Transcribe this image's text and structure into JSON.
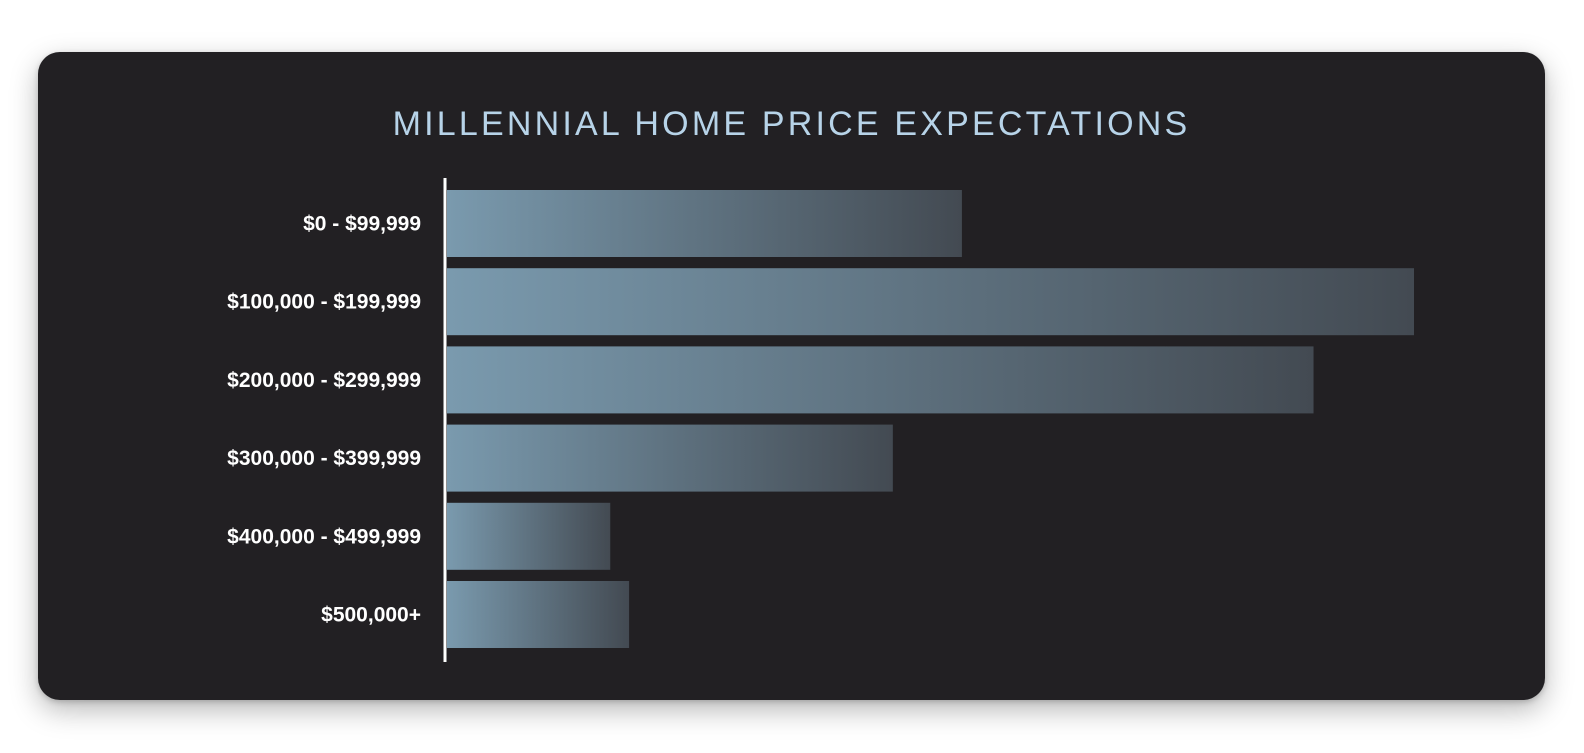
{
  "chart_data": {
    "type": "bar",
    "orientation": "horizontal",
    "title": "MILLENNIAL HOME PRICE EXPECTATIONS",
    "categories": [
      "$0 - $99,999",
      "$100,000 - $199,999",
      "$200,000 - $299,999",
      "$300,000 - $399,999",
      "$400,000 - $499,999",
      "$500,000+"
    ],
    "values": [
      16.4,
      30.8,
      27.6,
      14.2,
      5.2,
      5.8
    ],
    "xlim": [
      0,
      31
    ],
    "grid": false,
    "legend": "none",
    "bar_gradient": [
      "#7a9aae",
      "#434a52"
    ],
    "axis_color": "#ffffff",
    "title_color": "#b7d3e8"
  }
}
